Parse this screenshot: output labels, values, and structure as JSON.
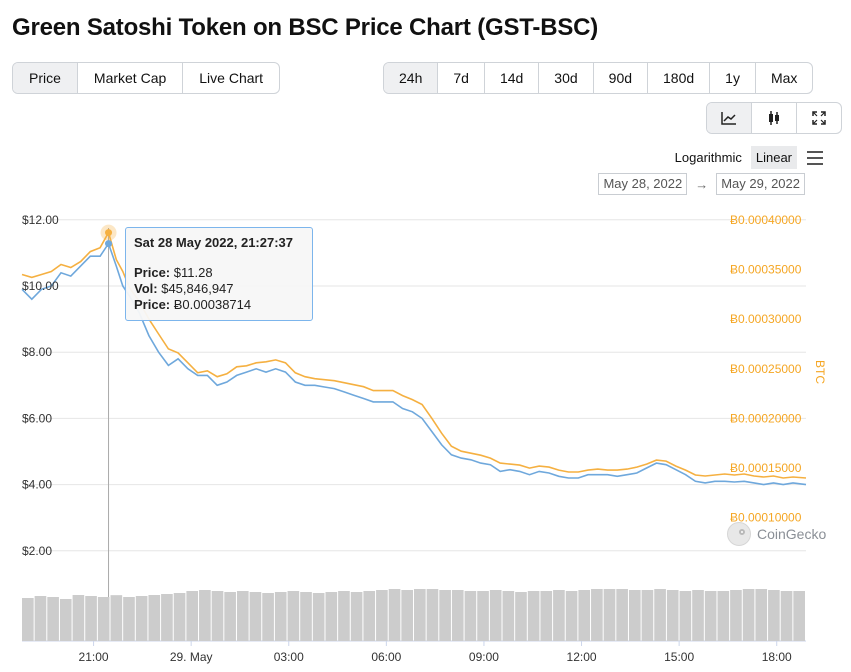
{
  "page": {
    "title": "Green Satoshi Token on BSC Price Chart (GST-BSC)"
  },
  "tabs_left": [
    "Price",
    "Market Cap",
    "Live Chart"
  ],
  "tabs_left_active": 0,
  "tabs_range": [
    "24h",
    "7d",
    "14d",
    "30d",
    "90d",
    "180d",
    "1y",
    "Max"
  ],
  "tabs_range_active": 0,
  "tools": [
    {
      "name": "line-chart-icon",
      "active": true
    },
    {
      "name": "candlestick-icon",
      "active": false
    },
    {
      "name": "expand-icon",
      "active": false
    }
  ],
  "scale": {
    "logarithmic": "Logarithmic",
    "linear": "Linear",
    "active": "linear"
  },
  "dates": {
    "from": "May 28, 2022",
    "arrow": "→",
    "to": "May 29, 2022"
  },
  "tooltip": {
    "date": "Sat 28 May 2022, 21:27:37",
    "price_label": "Price:",
    "price": "$11.28",
    "vol_label": "Vol:",
    "vol": "$45,846,947",
    "btc_label": "Price:",
    "btc": "Ƀ0.00038714"
  },
  "watermark": "CoinGecko",
  "colors": {
    "usd": "#6fa8dc",
    "btc": "#f5b041",
    "volume": "#cccccc",
    "grid": "#e6e6e6"
  },
  "chart_data": {
    "type": "line",
    "title": "Green Satoshi Token on BSC Price Chart (GST-BSC)",
    "x_unit": "hours",
    "x_range": [
      -2.2,
      21.9
    ],
    "x_tick_hours": [
      0,
      3,
      6,
      9,
      12,
      15,
      18,
      21
    ],
    "x_tick_labels": [
      "21:00",
      "29. May",
      "03:00",
      "06:00",
      "09:00",
      "12:00",
      "15:00",
      "18:00"
    ],
    "y_left": {
      "range": [
        0,
        12.4
      ],
      "ticks": [
        12,
        10,
        8,
        6,
        4,
        2
      ],
      "tick_labels": [
        "$12.00",
        "$10.00",
        "$8.00",
        "$6.00",
        "$4.00",
        "$2.00"
      ]
    },
    "y_right": {
      "label": "BTC",
      "range": [
        0,
        0.0004134
      ],
      "ticks": [
        0.0004,
        0.00035,
        0.0003,
        0.00025,
        0.0002,
        0.00015,
        0.0001
      ],
      "tick_labels": [
        "Ƀ0.00040000",
        "Ƀ0.00035000",
        "Ƀ0.00030000",
        "Ƀ0.00025000",
        "Ƀ0.00020000",
        "Ƀ0.00015000",
        "Ƀ0.00010000"
      ]
    },
    "hover_hours": 0.46,
    "series": [
      {
        "name": "Price (USD)",
        "axis": "left",
        "x": [
          -2.2,
          -1.9,
          -1.6,
          -1.3,
          -1.0,
          -0.7,
          -0.4,
          -0.1,
          0.2,
          0.46,
          0.7,
          0.9,
          1.1,
          1.4,
          1.7,
          2.0,
          2.3,
          2.6,
          2.9,
          3.2,
          3.5,
          3.8,
          4.1,
          4.4,
          4.7,
          5.0,
          5.3,
          5.6,
          5.9,
          6.2,
          6.5,
          6.8,
          7.1,
          7.4,
          7.7,
          8.0,
          8.3,
          8.6,
          8.9,
          9.2,
          9.5,
          9.8,
          10.1,
          10.4,
          10.7,
          11.0,
          11.3,
          11.6,
          11.9,
          12.2,
          12.5,
          12.8,
          13.1,
          13.4,
          13.7,
          14.0,
          14.3,
          14.6,
          14.9,
          15.2,
          15.5,
          15.8,
          16.1,
          16.4,
          16.7,
          17.0,
          17.3,
          17.6,
          17.9,
          18.2,
          18.5,
          18.8,
          19.1,
          19.4,
          19.7,
          20.0,
          20.3,
          20.6,
          20.9,
          21.2,
          21.5,
          21.9
        ],
        "y": [
          9.9,
          9.6,
          9.9,
          10.0,
          10.4,
          10.3,
          10.6,
          10.9,
          10.9,
          11.28,
          10.6,
          10.0,
          9.7,
          9.2,
          8.5,
          8.0,
          7.6,
          7.8,
          7.5,
          7.3,
          7.3,
          7.0,
          7.1,
          7.3,
          7.4,
          7.5,
          7.4,
          7.5,
          7.4,
          7.1,
          7.0,
          7.0,
          6.95,
          6.9,
          6.8,
          6.7,
          6.6,
          6.5,
          6.5,
          6.5,
          6.3,
          6.2,
          6.0,
          5.6,
          5.2,
          4.9,
          4.8,
          4.75,
          4.65,
          4.6,
          4.4,
          4.45,
          4.4,
          4.3,
          4.4,
          4.35,
          4.25,
          4.2,
          4.2,
          4.3,
          4.3,
          4.3,
          4.25,
          4.3,
          4.35,
          4.5,
          4.65,
          4.6,
          4.45,
          4.3,
          4.1,
          4.05,
          4.1,
          4.1,
          4.08,
          4.1,
          4.05,
          4.0,
          4.05,
          4.0,
          4.05,
          4.0
        ]
      },
      {
        "name": "Price (BTC)",
        "axis": "right",
        "x": [
          -2.2,
          -1.9,
          -1.6,
          -1.3,
          -1.0,
          -0.7,
          -0.4,
          -0.1,
          0.2,
          0.46,
          0.7,
          0.9,
          1.1,
          1.4,
          1.7,
          2.0,
          2.3,
          2.6,
          2.9,
          3.2,
          3.5,
          3.8,
          4.1,
          4.4,
          4.7,
          5.0,
          5.3,
          5.6,
          5.9,
          6.2,
          6.5,
          6.8,
          7.1,
          7.4,
          7.7,
          8.0,
          8.3,
          8.6,
          8.9,
          9.2,
          9.5,
          9.8,
          10.1,
          10.4,
          10.7,
          11.0,
          11.3,
          11.6,
          11.9,
          12.2,
          12.5,
          12.8,
          13.1,
          13.4,
          13.7,
          14.0,
          14.3,
          14.6,
          14.9,
          15.2,
          15.5,
          15.8,
          16.1,
          16.4,
          16.7,
          17.0,
          17.3,
          17.6,
          17.9,
          18.2,
          18.5,
          18.8,
          19.1,
          19.4,
          19.7,
          20.0,
          20.3,
          20.6,
          20.9,
          21.2,
          21.5,
          21.9
        ],
        "y": [
          0.000345,
          0.000342,
          0.000345,
          0.000348,
          0.000355,
          0.000352,
          0.000358,
          0.000368,
          0.000372,
          0.00038714,
          0.00036,
          0.000348,
          0.000332,
          0.000318,
          0.0003,
          0.000285,
          0.00027,
          0.000266,
          0.000256,
          0.000246,
          0.000248,
          0.000242,
          0.000245,
          0.000252,
          0.000253,
          0.000256,
          0.000257,
          0.000259,
          0.000256,
          0.000246,
          0.000242,
          0.00024,
          0.000239,
          0.000238,
          0.000236,
          0.000234,
          0.000232,
          0.000228,
          0.000228,
          0.000228,
          0.000223,
          0.000219,
          0.000214,
          0.0002,
          0.000185,
          0.000172,
          0.000167,
          0.000165,
          0.000163,
          0.00016,
          0.000155,
          0.000154,
          0.000153,
          0.00015,
          0.000152,
          0.000151,
          0.000148,
          0.000146,
          0.000146,
          0.000148,
          0.000149,
          0.000148,
          0.000148,
          0.000149,
          0.000151,
          0.000154,
          0.000158,
          0.000157,
          0.000152,
          0.000148,
          0.000143,
          0.000142,
          0.000143,
          0.000144,
          0.000143,
          0.000144,
          0.000142,
          0.000141,
          0.000142,
          0.00014,
          0.000141,
          0.00014
        ]
      }
    ],
    "volume": {
      "name": "Volume (USD)",
      "range_max": 80000000,
      "x_start": -2.2,
      "x_end": 21.9,
      "values": [
        43000000,
        45000000,
        44000000,
        42000000,
        46000000,
        45000000,
        44000000,
        45846947,
        44000000,
        45000000,
        46000000,
        47000000,
        48000000,
        50000000,
        51000000,
        50000000,
        49000000,
        50000000,
        49000000,
        48000000,
        49000000,
        50000000,
        49000000,
        48000000,
        49000000,
        50000000,
        49000000,
        50000000,
        51000000,
        52000000,
        51000000,
        52000000,
        52000000,
        51000000,
        51000000,
        50000000,
        50000000,
        51000000,
        50000000,
        49000000,
        50000000,
        50000000,
        51000000,
        50000000,
        51000000,
        52000000,
        52000000,
        52000000,
        51000000,
        51000000,
        52000000,
        51000000,
        50000000,
        51000000,
        50000000,
        50000000,
        51000000,
        52000000,
        52000000,
        51000000,
        50000000,
        50000000
      ]
    }
  }
}
